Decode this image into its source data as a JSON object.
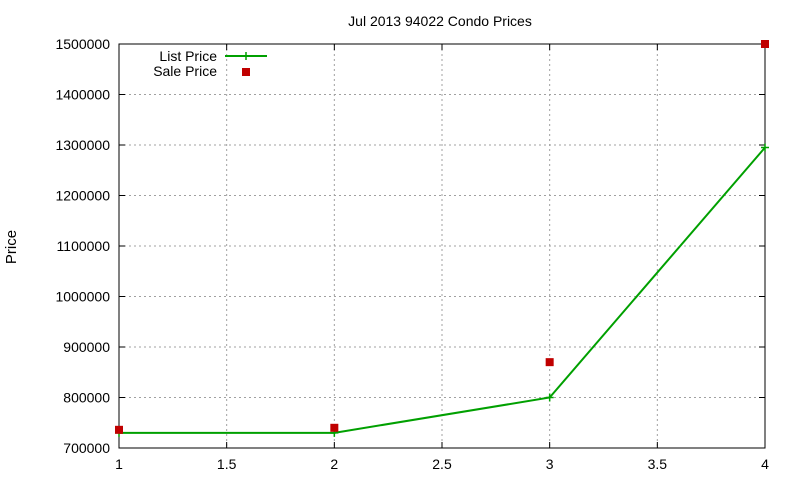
{
  "chart_data": {
    "type": "line",
    "title": "Jul 2013 94022 Condo Prices",
    "xlabel": "",
    "ylabel": "Price",
    "xlim": [
      1,
      4
    ],
    "ylim": [
      700000,
      1500000
    ],
    "xticks": [
      "1",
      "1.5",
      "2",
      "2.5",
      "3",
      "3.5",
      "4"
    ],
    "yticks": [
      "700000",
      "800000",
      "900000",
      "1000000",
      "1100000",
      "1200000",
      "1300000",
      "1400000",
      "1500000"
    ],
    "grid": true,
    "legend_position": "top-left",
    "series": [
      {
        "name": "List Price",
        "style": "line-with-plus-markers",
        "color": "#00a000",
        "x": [
          1,
          2,
          3,
          4
        ],
        "y": [
          730000,
          730000,
          800000,
          1295000
        ]
      },
      {
        "name": "Sale Price",
        "style": "square-markers",
        "color": "#c00000",
        "x": [
          1,
          2,
          3,
          4
        ],
        "y": [
          736000,
          740000,
          870000,
          1500000
        ]
      }
    ]
  }
}
